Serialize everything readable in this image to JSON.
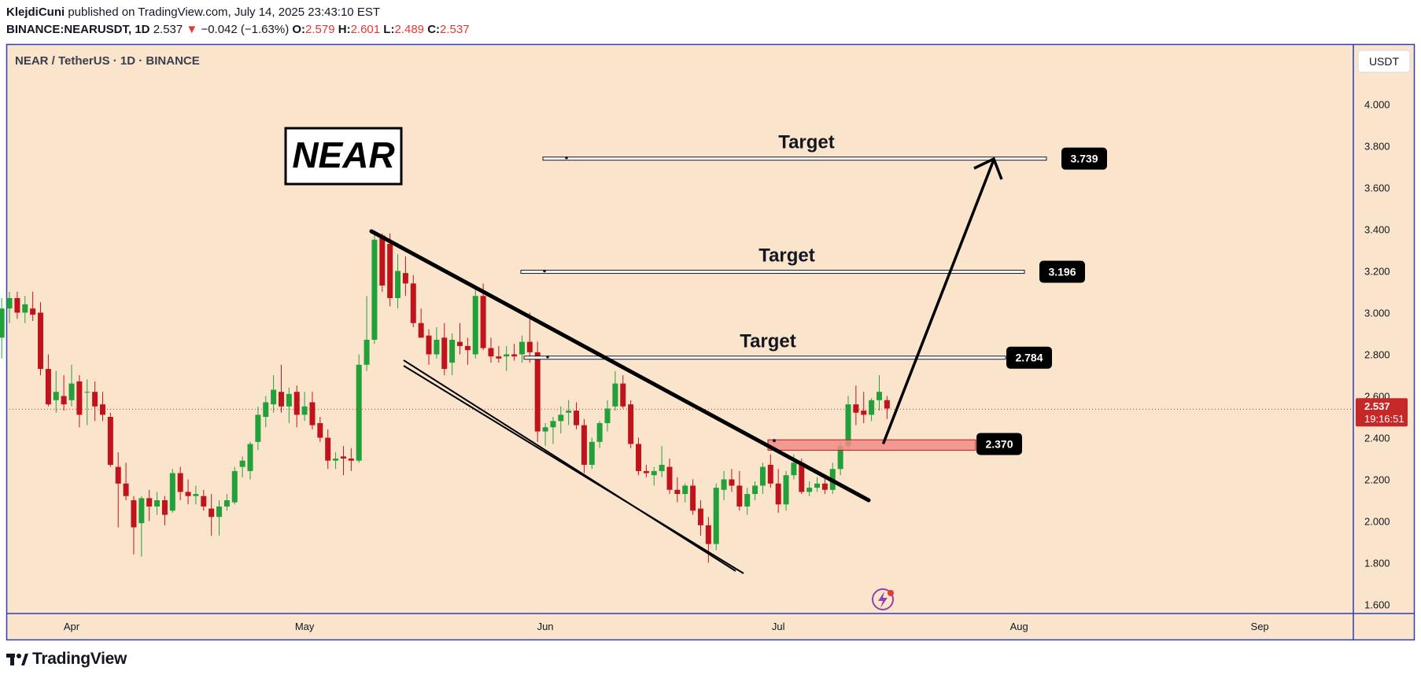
{
  "header": {
    "author": "KlejdiCuni",
    "published": "published on TradingView.com, July 14, 2025 23:43:10 EST",
    "symbol": "BINANCE:NEARUSDT, 1D",
    "last": "2.537",
    "change": "−0.042 (−1.63%)",
    "open_label": "O:",
    "open": "2.579",
    "high_label": "H:",
    "high": "2.601",
    "low_label": "L:",
    "low": "2.489",
    "close_label": "C:",
    "close": "2.537"
  },
  "footer": {
    "brand": "TradingView"
  },
  "colors": {
    "background": "#fae5cc",
    "up": "#22a039",
    "down": "#c0141c",
    "zone": "#f28b87",
    "frame": "#2a3eb8",
    "price_tag": "#c62828"
  },
  "chart_data": {
    "type": "candlestick",
    "title": "NEAR / TetherUS · 1D · BINANCE",
    "currency": "USDT",
    "ylim": [
      1.5,
      4.2
    ],
    "y_ticks": [
      "4.000",
      "3.800",
      "3.600",
      "3.400",
      "3.200",
      "3.000",
      "2.800",
      "2.600",
      "2.400",
      "2.200",
      "2.000",
      "1.800",
      "1.600"
    ],
    "x_ticks": [
      {
        "label": "Apr",
        "date": "2025-04-01"
      },
      {
        "label": "May",
        "date": "2025-05-01"
      },
      {
        "label": "Jun",
        "date": "2025-06-01"
      },
      {
        "label": "Jul",
        "date": "2025-07-01"
      },
      {
        "label": "Aug",
        "date": "2025-08-01"
      },
      {
        "label": "Sep",
        "date": "2025-09-01"
      }
    ],
    "last_price": {
      "value": 2.537,
      "label": "2.537",
      "countdown": "19:16:51"
    },
    "ohlc": [
      [
        "2025-03-23",
        2.88,
        3.07,
        2.78,
        3.02
      ],
      [
        "2025-03-24",
        3.02,
        3.1,
        2.95,
        3.07
      ],
      [
        "2025-03-25",
        3.07,
        3.1,
        2.97,
        3.0
      ],
      [
        "2025-03-26",
        3.0,
        3.08,
        2.95,
        3.04
      ],
      [
        "2025-03-27",
        3.02,
        3.1,
        2.96,
        2.99
      ],
      [
        "2025-03-28",
        3.0,
        3.05,
        2.7,
        2.73
      ],
      [
        "2025-03-29",
        2.73,
        2.8,
        2.55,
        2.56
      ],
      [
        "2025-03-30",
        2.58,
        2.72,
        2.52,
        2.62
      ],
      [
        "2025-03-31",
        2.6,
        2.7,
        2.53,
        2.56
      ],
      [
        "2025-04-01",
        2.58,
        2.75,
        2.55,
        2.66
      ],
      [
        "2025-04-02",
        2.67,
        2.7,
        2.45,
        2.51
      ],
      [
        "2025-04-03",
        2.62,
        2.68,
        2.46,
        2.62
      ],
      [
        "2025-04-04",
        2.62,
        2.67,
        2.48,
        2.55
      ],
      [
        "2025-04-05",
        2.56,
        2.62,
        2.48,
        2.51
      ],
      [
        "2025-04-06",
        2.5,
        2.52,
        2.26,
        2.27
      ],
      [
        "2025-04-07",
        2.26,
        2.33,
        1.97,
        2.18
      ],
      [
        "2025-04-08",
        2.18,
        2.28,
        2.1,
        2.12
      ],
      [
        "2025-04-09",
        2.1,
        2.12,
        1.84,
        1.97
      ],
      [
        "2025-04-10",
        1.99,
        2.12,
        1.83,
        2.11
      ],
      [
        "2025-04-11",
        2.11,
        2.15,
        2.0,
        2.07
      ],
      [
        "2025-04-12",
        2.07,
        2.14,
        2.03,
        2.1
      ],
      [
        "2025-04-13",
        2.1,
        2.12,
        1.98,
        2.03
      ],
      [
        "2025-04-14",
        2.05,
        2.25,
        2.04,
        2.23
      ],
      [
        "2025-04-15",
        2.23,
        2.26,
        2.1,
        2.14
      ],
      [
        "2025-04-16",
        2.14,
        2.2,
        2.08,
        2.12
      ],
      [
        "2025-04-17",
        2.12,
        2.17,
        2.08,
        2.13
      ],
      [
        "2025-04-18",
        2.12,
        2.15,
        2.05,
        2.07
      ],
      [
        "2025-04-19",
        2.06,
        2.13,
        1.93,
        2.02
      ],
      [
        "2025-04-20",
        2.02,
        2.1,
        1.93,
        2.07
      ],
      [
        "2025-04-21",
        2.07,
        2.13,
        2.05,
        2.1
      ],
      [
        "2025-04-22",
        2.09,
        2.26,
        2.08,
        2.24
      ],
      [
        "2025-04-23",
        2.26,
        2.31,
        2.21,
        2.29
      ],
      [
        "2025-04-24",
        2.24,
        2.38,
        2.2,
        2.37
      ],
      [
        "2025-04-25",
        2.38,
        2.55,
        2.34,
        2.51
      ],
      [
        "2025-04-26",
        2.5,
        2.6,
        2.45,
        2.57
      ],
      [
        "2025-04-27",
        2.56,
        2.7,
        2.52,
        2.63
      ],
      [
        "2025-04-28",
        2.62,
        2.75,
        2.52,
        2.55
      ],
      [
        "2025-04-29",
        2.55,
        2.64,
        2.47,
        2.61
      ],
      [
        "2025-04-30",
        2.62,
        2.65,
        2.45,
        2.51
      ],
      [
        "2025-05-01",
        2.51,
        2.62,
        2.48,
        2.55
      ],
      [
        "2025-05-02",
        2.57,
        2.62,
        2.44,
        2.46
      ],
      [
        "2025-05-03",
        2.47,
        2.5,
        2.38,
        2.4
      ],
      [
        "2025-05-04",
        2.4,
        2.44,
        2.25,
        2.29
      ],
      [
        "2025-05-05",
        2.29,
        2.33,
        2.25,
        2.3
      ],
      [
        "2025-05-06",
        2.31,
        2.36,
        2.22,
        2.3
      ],
      [
        "2025-05-07",
        2.3,
        2.35,
        2.24,
        2.29
      ],
      [
        "2025-05-08",
        2.29,
        2.8,
        2.28,
        2.75
      ],
      [
        "2025-05-09",
        2.75,
        3.08,
        2.72,
        2.87
      ],
      [
        "2025-05-10",
        2.87,
        3.38,
        2.85,
        3.35
      ],
      [
        "2025-05-11",
        3.37,
        3.38,
        3.1,
        3.13
      ],
      [
        "2025-05-12",
        3.33,
        3.38,
        3.03,
        3.07
      ],
      [
        "2025-05-13",
        3.07,
        3.28,
        3.02,
        3.2
      ],
      [
        "2025-05-14",
        3.19,
        3.27,
        3.08,
        3.14
      ],
      [
        "2025-05-15",
        3.14,
        3.18,
        2.93,
        2.95
      ],
      [
        "2025-05-16",
        2.95,
        3.02,
        2.88,
        2.88
      ],
      [
        "2025-05-17",
        2.89,
        2.92,
        2.75,
        2.8
      ],
      [
        "2025-05-18",
        2.8,
        2.93,
        2.78,
        2.87
      ],
      [
        "2025-05-19",
        2.88,
        2.95,
        2.7,
        2.73
      ],
      [
        "2025-05-20",
        2.76,
        2.9,
        2.7,
        2.87
      ],
      [
        "2025-05-21",
        2.86,
        2.95,
        2.8,
        2.84
      ],
      [
        "2025-05-22",
        2.84,
        2.88,
        2.75,
        2.82
      ],
      [
        "2025-05-23",
        2.8,
        3.12,
        2.78,
        3.08
      ],
      [
        "2025-05-24",
        3.08,
        3.14,
        2.82,
        2.83
      ],
      [
        "2025-05-25",
        2.83,
        2.88,
        2.76,
        2.79
      ],
      [
        "2025-05-26",
        2.79,
        2.84,
        2.76,
        2.78
      ],
      [
        "2025-05-27",
        2.79,
        2.84,
        2.72,
        2.8
      ],
      [
        "2025-05-28",
        2.8,
        2.85,
        2.77,
        2.79
      ],
      [
        "2025-05-29",
        2.8,
        2.89,
        2.76,
        2.86
      ],
      [
        "2025-05-30",
        2.86,
        3.0,
        2.76,
        2.81
      ],
      [
        "2025-05-31",
        2.81,
        2.86,
        2.38,
        2.43
      ],
      [
        "2025-06-01",
        2.43,
        2.47,
        2.36,
        2.45
      ],
      [
        "2025-06-02",
        2.45,
        2.5,
        2.37,
        2.48
      ],
      [
        "2025-06-03",
        2.48,
        2.55,
        2.42,
        2.51
      ],
      [
        "2025-06-04",
        2.52,
        2.58,
        2.46,
        2.53
      ],
      [
        "2025-06-05",
        2.53,
        2.57,
        2.44,
        2.46
      ],
      [
        "2025-06-06",
        2.46,
        2.49,
        2.23,
        2.27
      ],
      [
        "2025-06-07",
        2.27,
        2.4,
        2.25,
        2.38
      ],
      [
        "2025-06-08",
        2.38,
        2.48,
        2.35,
        2.47
      ],
      [
        "2025-06-09",
        2.47,
        2.58,
        2.43,
        2.54
      ],
      [
        "2025-06-10",
        2.55,
        2.72,
        2.53,
        2.66
      ],
      [
        "2025-06-11",
        2.66,
        2.7,
        2.54,
        2.55
      ],
      [
        "2025-06-12",
        2.56,
        2.58,
        2.35,
        2.37
      ],
      [
        "2025-06-13",
        2.37,
        2.4,
        2.22,
        2.24
      ],
      [
        "2025-06-14",
        2.24,
        2.27,
        2.21,
        2.23
      ],
      [
        "2025-06-15",
        2.22,
        2.26,
        2.17,
        2.24
      ],
      [
        "2025-06-16",
        2.24,
        2.36,
        2.21,
        2.27
      ],
      [
        "2025-06-17",
        2.26,
        2.3,
        2.13,
        2.15
      ],
      [
        "2025-06-18",
        2.15,
        2.21,
        2.09,
        2.13
      ],
      [
        "2025-06-19",
        2.13,
        2.18,
        2.09,
        2.17
      ],
      [
        "2025-06-20",
        2.17,
        2.2,
        2.03,
        2.05
      ],
      [
        "2025-06-21",
        2.06,
        2.1,
        1.93,
        1.98
      ],
      [
        "2025-06-22",
        1.98,
        2.02,
        1.8,
        1.89
      ],
      [
        "2025-06-23",
        1.89,
        2.18,
        1.86,
        2.16
      ],
      [
        "2025-06-24",
        2.15,
        2.24,
        2.1,
        2.2
      ],
      [
        "2025-06-25",
        2.2,
        2.25,
        2.14,
        2.17
      ],
      [
        "2025-06-26",
        2.17,
        2.24,
        2.05,
        2.07
      ],
      [
        "2025-06-27",
        2.07,
        2.16,
        2.03,
        2.13
      ],
      [
        "2025-06-28",
        2.13,
        2.19,
        2.1,
        2.17
      ],
      [
        "2025-06-29",
        2.17,
        2.28,
        2.13,
        2.26
      ],
      [
        "2025-06-30",
        2.27,
        2.32,
        2.16,
        2.18
      ],
      [
        "2025-07-01",
        2.18,
        2.25,
        2.04,
        2.08
      ],
      [
        "2025-07-02",
        2.08,
        2.24,
        2.05,
        2.22
      ],
      [
        "2025-07-03",
        2.22,
        2.32,
        2.2,
        2.28
      ],
      [
        "2025-07-04",
        2.28,
        2.3,
        2.13,
        2.14
      ],
      [
        "2025-07-05",
        2.14,
        2.19,
        2.12,
        2.16
      ],
      [
        "2025-07-06",
        2.16,
        2.21,
        2.14,
        2.18
      ],
      [
        "2025-07-07",
        2.18,
        2.22,
        2.13,
        2.15
      ],
      [
        "2025-07-08",
        2.15,
        2.28,
        2.13,
        2.25
      ],
      [
        "2025-07-09",
        2.25,
        2.38,
        2.22,
        2.36
      ],
      [
        "2025-07-10",
        2.36,
        2.6,
        2.34,
        2.56
      ],
      [
        "2025-07-11",
        2.56,
        2.65,
        2.46,
        2.52
      ],
      [
        "2025-07-12",
        2.53,
        2.62,
        2.47,
        2.51
      ],
      [
        "2025-07-13",
        2.51,
        2.59,
        2.48,
        2.58
      ],
      [
        "2025-07-14",
        2.58,
        2.7,
        2.53,
        2.62
      ],
      [
        "2025-07-15",
        2.58,
        2.6,
        2.49,
        2.54
      ]
    ],
    "levels": [
      {
        "label": "Target",
        "value": 3.739,
        "tag": "3.739"
      },
      {
        "label": "Target",
        "value": 3.196,
        "tag": "3.196"
      },
      {
        "label": "Target",
        "value": 2.784,
        "tag": "2.784"
      }
    ],
    "support_zone": {
      "from": 2.34,
      "to": 2.39,
      "tag": "2.370"
    },
    "annotation_box": "NEAR"
  }
}
